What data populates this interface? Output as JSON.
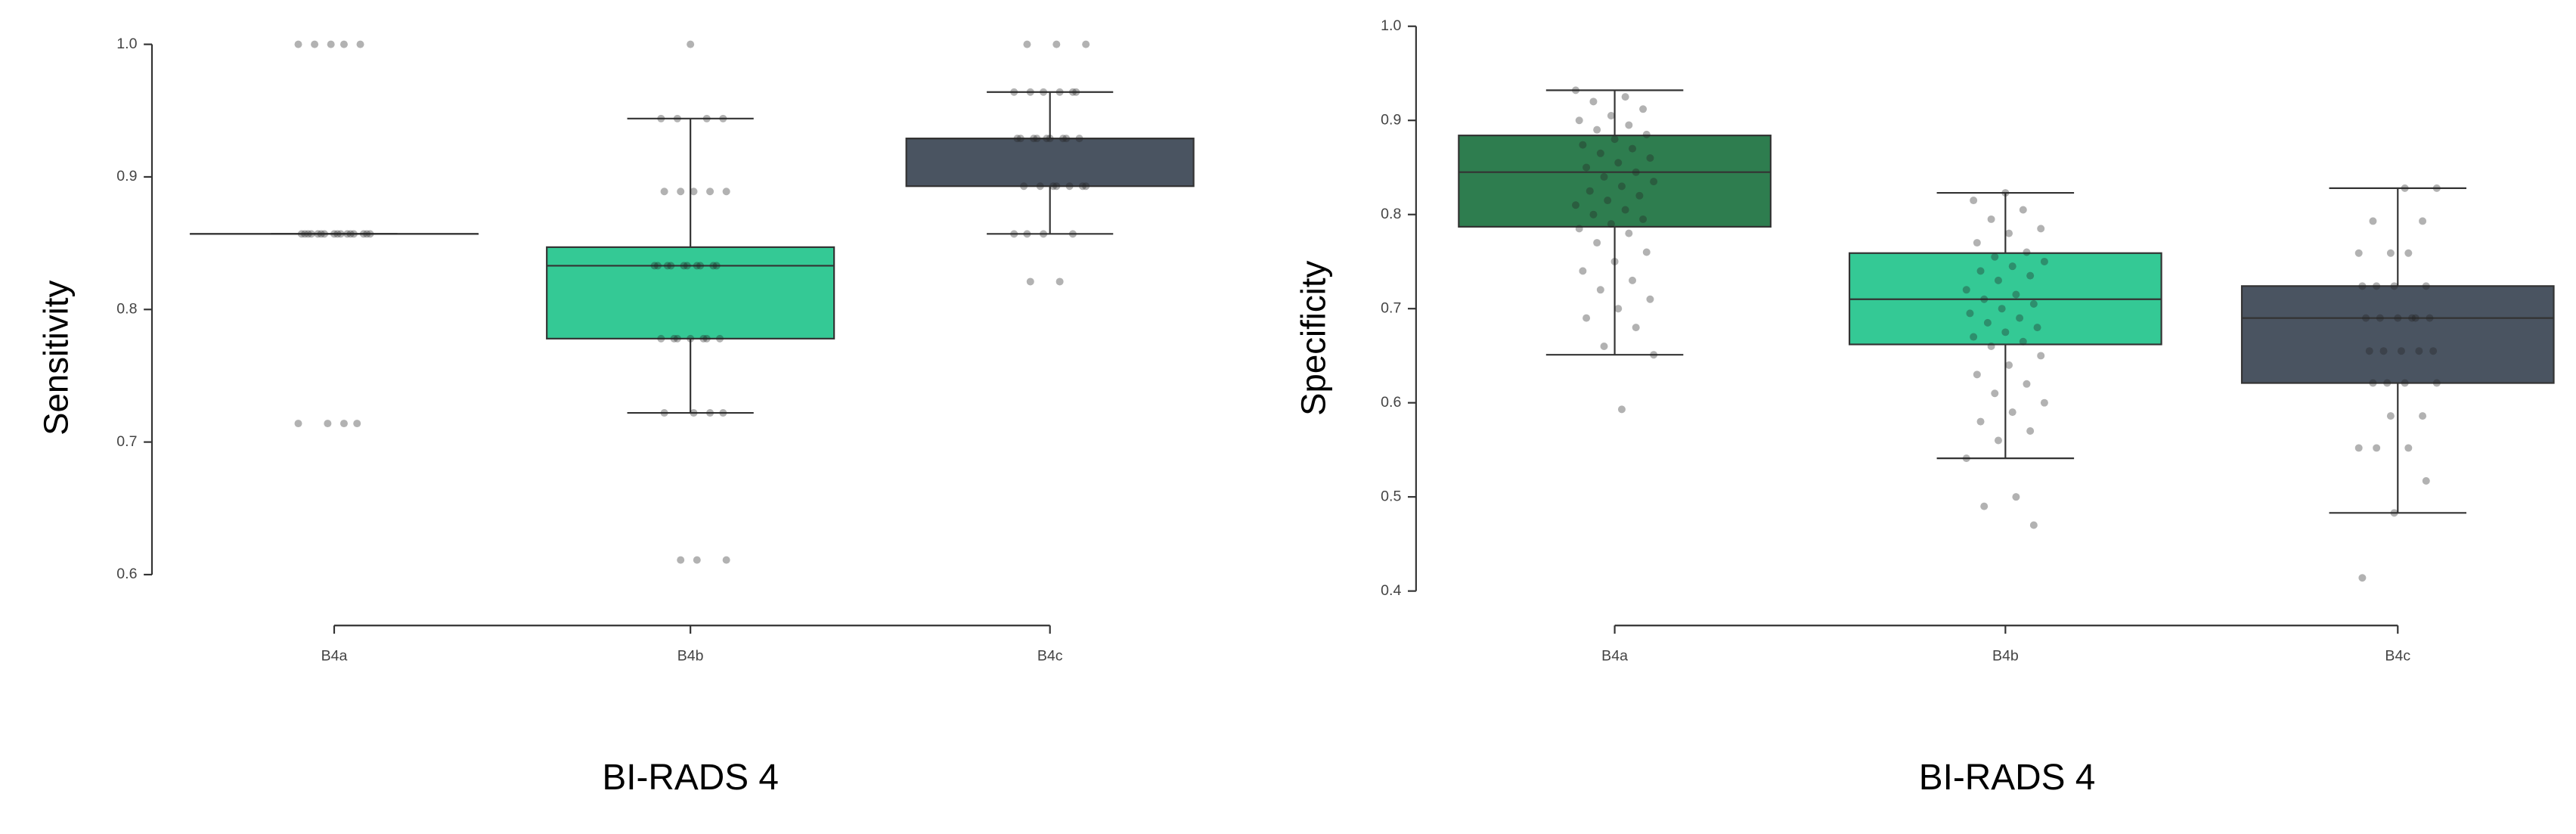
{
  "chart_data": [
    {
      "type": "box",
      "ylabel": "Sensitivity",
      "xlabel": "BI-RADS 4",
      "categories": [
        "B4a",
        "B4b",
        "B4c"
      ],
      "colors": [
        "#2e7d4f",
        "#34c995",
        "#4a5461"
      ],
      "ylim": [
        0.6,
        1.0
      ],
      "yticks": [
        {
          "value": 1.0,
          "label": "1.0"
        },
        0.9,
        0.8,
        0.7,
        0.6
      ],
      "boxes": [
        {
          "whislo": 0.857,
          "q1": 0.857,
          "med": 0.857,
          "q3": 0.857,
          "whishi": 0.857,
          "points": [
            1.0,
            1.0,
            1.0,
            1.0,
            1.0,
            0.857,
            0.857,
            0.857,
            0.857,
            0.857,
            0.857,
            0.857,
            0.857,
            0.857,
            0.857,
            0.857,
            0.857,
            0.857,
            0.857,
            0.857,
            0.857,
            0.714,
            0.714,
            0.714,
            0.714
          ]
        },
        {
          "whislo": 0.722,
          "q1": 0.778,
          "med": 0.833,
          "q3": 0.847,
          "whishi": 0.944,
          "points": [
            1.0,
            0.944,
            0.944,
            0.944,
            0.944,
            0.889,
            0.889,
            0.889,
            0.889,
            0.889,
            0.833,
            0.833,
            0.833,
            0.833,
            0.833,
            0.833,
            0.833,
            0.833,
            0.833,
            0.833,
            0.778,
            0.778,
            0.778,
            0.778,
            0.778,
            0.778,
            0.778,
            0.722,
            0.722,
            0.722,
            0.722,
            0.611,
            0.611,
            0.611
          ]
        },
        {
          "whislo": 0.857,
          "q1": 0.893,
          "med": 0.929,
          "q3": 0.929,
          "whishi": 0.964,
          "points": [
            1.0,
            1.0,
            1.0,
            0.964,
            0.964,
            0.964,
            0.964,
            0.964,
            0.964,
            0.929,
            0.929,
            0.929,
            0.929,
            0.929,
            0.929,
            0.929,
            0.929,
            0.929,
            0.893,
            0.893,
            0.893,
            0.893,
            0.893,
            0.893,
            0.893,
            0.857,
            0.857,
            0.857,
            0.857,
            0.821,
            0.821
          ]
        }
      ]
    },
    {
      "type": "box",
      "ylabel": "Specificity",
      "xlabel": "BI-RADS 4",
      "categories": [
        "B4a",
        "B4b",
        "B4c"
      ],
      "colors": [
        "#2e7d4f",
        "#34c995",
        "#4a5461"
      ],
      "ylim": [
        0.4,
        1.0
      ],
      "yticks": [
        {
          "value": 1.0,
          "label": "1.0"
        },
        0.9,
        0.8,
        0.7,
        0.6,
        0.5,
        0.4
      ],
      "boxes": [
        {
          "whislo": 0.651,
          "q1": 0.787,
          "med": 0.845,
          "q3": 0.884,
          "whishi": 0.932,
          "points": [
            0.932,
            0.925,
            0.92,
            0.912,
            0.905,
            0.9,
            0.895,
            0.89,
            0.885,
            0.88,
            0.874,
            0.87,
            0.865,
            0.86,
            0.855,
            0.85,
            0.845,
            0.84,
            0.835,
            0.83,
            0.825,
            0.82,
            0.815,
            0.81,
            0.805,
            0.8,
            0.795,
            0.79,
            0.785,
            0.78,
            0.77,
            0.76,
            0.75,
            0.74,
            0.73,
            0.72,
            0.71,
            0.7,
            0.69,
            0.68,
            0.66,
            0.651,
            0.593
          ]
        },
        {
          "whislo": 0.541,
          "q1": 0.662,
          "med": 0.71,
          "q3": 0.759,
          "whishi": 0.823,
          "points": [
            0.823,
            0.815,
            0.805,
            0.795,
            0.785,
            0.78,
            0.77,
            0.76,
            0.755,
            0.75,
            0.745,
            0.74,
            0.735,
            0.73,
            0.72,
            0.715,
            0.71,
            0.705,
            0.7,
            0.695,
            0.69,
            0.685,
            0.68,
            0.675,
            0.67,
            0.665,
            0.66,
            0.65,
            0.64,
            0.63,
            0.62,
            0.61,
            0.6,
            0.59,
            0.58,
            0.57,
            0.56,
            0.541,
            0.5,
            0.49,
            0.47
          ]
        },
        {
          "whislo": 0.483,
          "q1": 0.621,
          "med": 0.69,
          "q3": 0.724,
          "whishi": 0.828,
          "points": [
            0.828,
            0.828,
            0.793,
            0.793,
            0.759,
            0.759,
            0.759,
            0.724,
            0.724,
            0.724,
            0.724,
            0.69,
            0.69,
            0.69,
            0.69,
            0.69,
            0.69,
            0.655,
            0.655,
            0.655,
            0.655,
            0.655,
            0.621,
            0.621,
            0.621,
            0.621,
            0.586,
            0.586,
            0.552,
            0.552,
            0.552,
            0.517,
            0.483,
            0.414
          ]
        }
      ]
    }
  ]
}
